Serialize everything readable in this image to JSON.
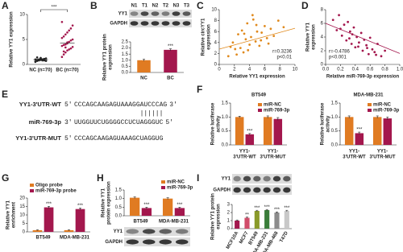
{
  "chart_data": [
    {
      "type": "strip",
      "panel": "A",
      "ylabel": "Relative YY1 expression",
      "categories": [
        "NC (n=70)",
        "BC (n=70)"
      ],
      "colors": [
        "#222222",
        "#a3174d"
      ],
      "values": [
        [
          0.5,
          0.7,
          0.8,
          0.9,
          1.0,
          1.1,
          1.2,
          0.6,
          0.9,
          1.0,
          1.3,
          0.8,
          1.1,
          0.7,
          1.0,
          1.4,
          0.9,
          1.2,
          1.0,
          0.8
        ],
        [
          1.5,
          2.0,
          2.4,
          2.8,
          3.0,
          3.2,
          3.5,
          3.7,
          3.9,
          4.0,
          4.2,
          4.5,
          4.8,
          5.0,
          5.3,
          5.6,
          6.0,
          6.4,
          6.8,
          7.2,
          7.8,
          8.5,
          2.6,
          3.4,
          4.4
        ]
      ],
      "means": [
        0.95,
        4.3
      ],
      "significance": "***",
      "ylim": [
        0,
        10
      ],
      "yticks": [
        0,
        5,
        10
      ]
    },
    {
      "type": "bar",
      "panel": "B",
      "ylabel": [
        "Relative YY1 protein",
        "expression"
      ],
      "blot": {
        "lanes": [
          "N1",
          "T1",
          "N2",
          "T2",
          "N3",
          "T3"
        ],
        "rows": [
          "YY1",
          "GAPDH"
        ]
      },
      "categories": [
        "NC",
        "BC"
      ],
      "values": [
        1.0,
        1.85
      ],
      "errors": [
        0.08,
        0.08
      ],
      "colors": [
        "#e07b22",
        "#a3174d"
      ],
      "significance": [
        null,
        "***"
      ],
      "ylim": [
        0,
        2.5
      ],
      "yticks": [
        {
          "value": 0,
          "label": "0.0"
        },
        {
          "value": 0.5,
          "label": "0.5"
        },
        {
          "value": 1,
          "label": "1.0"
        },
        {
          "value": 1.5,
          "label": "1.5"
        },
        {
          "value": 2,
          "label": "2.0"
        },
        {
          "value": 2.5,
          "label": "2.5"
        }
      ]
    },
    {
      "type": "scatter",
      "panel": "C",
      "xlabel": "Relative YY1 expression",
      "ylabel": [
        "Relative circYY1",
        "expression"
      ],
      "color": "#e08a1e",
      "annotations": [
        "r=0.3236",
        "p<0.01"
      ],
      "x": [
        1.2,
        1.8,
        2.1,
        2.5,
        2.8,
        3.0,
        3.2,
        3.5,
        3.7,
        4.0,
        4.2,
        4.5,
        4.8,
        5.0,
        5.3,
        5.6,
        6.0,
        6.3,
        6.8,
        7.2,
        7.8,
        8.5,
        2.3,
        3.8,
        4.4,
        5.5,
        6.5,
        1.5,
        3.3,
        4.9
      ],
      "y": [
        1.5,
        4.0,
        2.8,
        5.5,
        3.0,
        6.2,
        2.2,
        4.6,
        7.5,
        3.6,
        5.0,
        8.2,
        4.2,
        6.0,
        3.4,
        5.8,
        7.0,
        4.8,
        6.5,
        5.2,
        8.0,
        6.8,
        1.8,
        2.6,
        9.0,
        4.4,
        3.8,
        3.2,
        5.6,
        7.2
      ],
      "trendline": {
        "x": [
          0,
          10
        ],
        "y": [
          2.8,
          6.6
        ]
      },
      "xlim": [
        0,
        10
      ],
      "xticks": [
        0,
        2,
        4,
        6,
        8,
        10
      ],
      "ylim": [
        0,
        10
      ],
      "yticks": [
        0,
        2,
        4,
        6,
        8,
        10
      ]
    },
    {
      "type": "scatter",
      "panel": "D",
      "xlabel": "Relative miR-769-3p expression",
      "ylabel": [
        "Relative YY1",
        "expression"
      ],
      "color": "#a3174d",
      "annotations": [
        "r=-0.4786",
        "p<0.001"
      ],
      "x": [
        0.1,
        0.15,
        0.18,
        0.22,
        0.25,
        0.28,
        0.3,
        0.33,
        0.35,
        0.38,
        0.4,
        0.42,
        0.45,
        0.48,
        0.5,
        0.52,
        0.55,
        0.58,
        0.6,
        0.63,
        0.66,
        0.7,
        0.75,
        0.8,
        0.2,
        0.32,
        0.44,
        0.56,
        0.68,
        0.36
      ],
      "y": [
        6.5,
        5.0,
        7.2,
        4.2,
        5.8,
        3.5,
        6.2,
        4.8,
        3.0,
        5.4,
        2.5,
        4.0,
        3.2,
        4.6,
        2.0,
        3.6,
        2.8,
        1.5,
        3.9,
        2.2,
        1.8,
        3.0,
        1.2,
        2.0,
        5.2,
        3.8,
        2.6,
        2.4,
        1.4,
        4.4
      ],
      "trendline": {
        "x": [
          0,
          1
        ],
        "y": [
          6.0,
          1.6
        ]
      },
      "xlim": [
        0,
        1
      ],
      "xticks": [
        {
          "value": 0,
          "label": "0.0"
        },
        {
          "value": 0.2,
          "label": "0.2"
        },
        {
          "value": 0.4,
          "label": "0.4"
        },
        {
          "value": 0.6,
          "label": "0.6"
        },
        {
          "value": 0.8,
          "label": "0.8"
        },
        {
          "value": 1,
          "label": "1.0"
        }
      ],
      "ylim": [
        0,
        8
      ],
      "yticks": [
        0,
        2,
        4,
        6,
        8
      ]
    },
    {
      "type": "bar",
      "panel": "F",
      "title": "BT549",
      "ylabel": [
        "Relative luciferase",
        "activity"
      ],
      "legend": "upper right",
      "categories": [
        [
          "YY1-",
          "3'UTR-WT"
        ],
        [
          "YY1-",
          "3'UTR-MUT"
        ]
      ],
      "series": [
        {
          "name": "miR-NC",
          "color": "#e07b22",
          "values": [
            1.0,
            1.0
          ],
          "errors": [
            0.03,
            0.04
          ]
        },
        {
          "name": "miR-769-3p",
          "color": "#a3174d",
          "values": [
            0.38,
            0.93
          ],
          "errors": [
            0.03,
            0.05
          ],
          "significance": [
            "***",
            null
          ]
        }
      ],
      "ylim": [
        0,
        1.5
      ],
      "yticks": [
        {
          "value": 0,
          "label": "0.0"
        },
        {
          "value": 0.5,
          "label": "0.5"
        },
        {
          "value": 1,
          "label": "1.0"
        },
        {
          "value": 1.5,
          "label": "1.5"
        }
      ]
    },
    {
      "type": "bar",
      "title": "MDA-MB-231",
      "ylabel": [
        "Relative luciferase",
        "activity"
      ],
      "legend": "upper right",
      "categories": [
        [
          "YY1-",
          "3'UTR-WT"
        ],
        [
          "YY1-",
          "3'UTR-MUT"
        ]
      ],
      "series": [
        {
          "name": "miR-NC",
          "color": "#e07b22",
          "values": [
            1.0,
            1.0
          ],
          "errors": [
            0.04,
            0.04
          ]
        },
        {
          "name": "miR-769-3p",
          "color": "#a3174d",
          "values": [
            0.42,
            0.95
          ],
          "errors": [
            0.04,
            0.05
          ],
          "significance": [
            "***",
            null
          ]
        }
      ],
      "ylim": [
        0,
        1.5
      ],
      "yticks": [
        {
          "value": 0,
          "label": "0.0"
        },
        {
          "value": 0.5,
          "label": "0.5"
        },
        {
          "value": 1,
          "label": "1.0"
        },
        {
          "value": 1.5,
          "label": "1.5"
        }
      ]
    },
    {
      "type": "bar",
      "panel": "G",
      "ylabel": [
        "Relative YY1",
        "enrichment"
      ],
      "legend": "upper left",
      "categories": [
        "BT549",
        "MDA-MB-231"
      ],
      "series": [
        {
          "name": "Oligo probe",
          "color": "#e07b22",
          "values": [
            1.0,
            1.0
          ],
          "errors": [
            0.2,
            0.2
          ]
        },
        {
          "name": "miR-769-3p probe",
          "color": "#a3174d",
          "values": [
            14.5,
            13.5
          ],
          "errors": [
            0.6,
            0.6
          ],
          "significance": [
            "***",
            "***"
          ]
        }
      ],
      "ylim": [
        0,
        20
      ],
      "yticks": [
        0,
        5,
        10,
        15,
        20
      ]
    },
    {
      "type": "bar",
      "panel": "H",
      "ylabel": [
        "Relative YY1",
        "protein expression"
      ],
      "legend": "upper right",
      "blot": {
        "rows": [
          "YY1",
          "GAPDH"
        ]
      },
      "categories": [
        "BT549",
        "MDA-MB-231"
      ],
      "series": [
        {
          "name": "miR-NC",
          "color": "#e07b22",
          "values": [
            1.05,
            1.0
          ],
          "errors": [
            0.05,
            0.05
          ]
        },
        {
          "name": "miR-769-3p",
          "color": "#a3174d",
          "values": [
            0.45,
            0.45
          ],
          "errors": [
            0.05,
            0.05
          ],
          "significance": [
            "***",
            "***"
          ]
        }
      ],
      "ylim": [
        0,
        1.5
      ],
      "yticks": [
        {
          "value": 0,
          "label": "0.0"
        },
        {
          "value": 0.5,
          "label": "0.5"
        },
        {
          "value": 1,
          "label": "1.0"
        },
        {
          "value": 1.5,
          "label": "1.5"
        }
      ]
    },
    {
      "type": "bar",
      "panel": "I",
      "ylabel": [
        "Relative YY1 protein",
        "expression"
      ],
      "rotate_labels": true,
      "blot": {
        "rows": [
          "YY1",
          "GAPDH"
        ]
      },
      "categories": [
        "MCF10A",
        "MCF7",
        "BT549",
        "MDA-MB-231",
        "MDA-MB-468",
        "T47D"
      ],
      "values": [
        1.0,
        1.35,
        2.2,
        2.3,
        2.0,
        2.2
      ],
      "errors": [
        0.08,
        0.08,
        0.08,
        0.08,
        0.08,
        0.08
      ],
      "colors": [
        "#a3174d",
        "#d14d6a",
        "#8a9a2a",
        "#3a7d3a",
        "#8c8c8c",
        "#c8c8c8"
      ],
      "significance": [
        null,
        "**",
        "***",
        "***",
        "***",
        "***"
      ],
      "ylim": [
        0,
        3
      ],
      "yticks": [
        0,
        1,
        2,
        3
      ]
    }
  ],
  "sequence_panel": {
    "label": "E",
    "wt": {
      "name": "YY1-3'UTR-WT",
      "start": "5'",
      "seq": "CCCAGCAAGAGUAAAGGAUCCCAG",
      "end": "3'"
    },
    "pairing": "||||||",
    "mir": {
      "name": "miR-769-3p",
      "start": "3'",
      "seq": "UUGGUUCUGGGGCCUCUAGGGUC",
      "end": "5'"
    },
    "mut": {
      "name": "YY1-3'UTR-MUT",
      "start": "5'",
      "seq": "CCCAGCAAGAGUAAAG",
      "mutated": "CUAGGUG"
    }
  }
}
